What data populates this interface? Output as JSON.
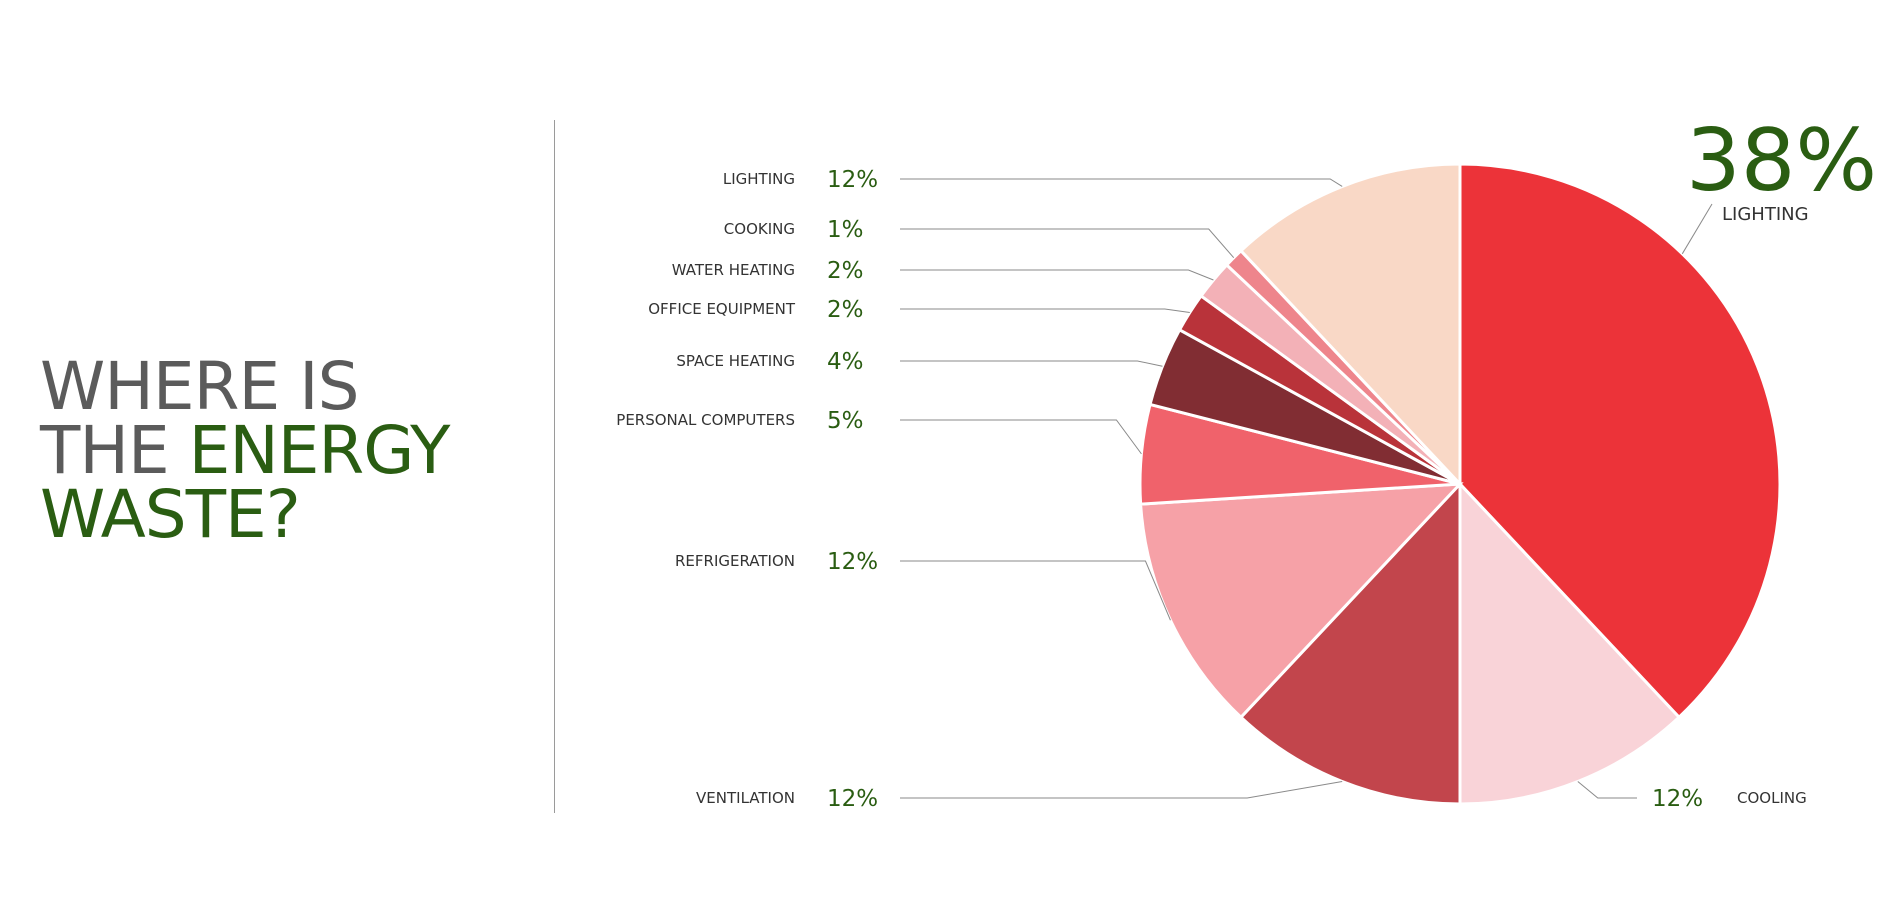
{
  "headline": {
    "line1": "WHERE IS",
    "line2a": "THE ",
    "line2b": "ENERGY",
    "line3": "WASTE?"
  },
  "chart_data": {
    "type": "pie",
    "slices": [
      {
        "label": "LIGHTING",
        "pct_text": "38%",
        "value": 38,
        "color": "#ec3339"
      },
      {
        "label": "COOLING",
        "pct_text": "12%",
        "value": 12,
        "color": "#f9d3d8"
      },
      {
        "label": "VENTILATION",
        "pct_text": "12%",
        "value": 12,
        "color": "#c2454c"
      },
      {
        "label": "REFRIGERATION",
        "pct_text": "12%",
        "value": 12,
        "color": "#f6a1a7"
      },
      {
        "label": "PERSONAL COMPUTERS",
        "pct_text": "5%",
        "value": 5,
        "color": "#f0626b"
      },
      {
        "label": "SPACE HEATING",
        "pct_text": "4%",
        "value": 4,
        "color": "#812d33"
      },
      {
        "label": "OFFICE EQUIPMENT",
        "pct_text": "2%",
        "value": 2,
        "color": "#b9333a"
      },
      {
        "label": "WATER HEATING",
        "pct_text": "2%",
        "value": 2,
        "color": "#f3b1b7"
      },
      {
        "label": "COOKING",
        "pct_text": "1%",
        "value": 1,
        "color": "#ee858c"
      },
      {
        "label": "LIGHTING",
        "pct_text": "12%",
        "value": 12,
        "color": "#f9d8c6"
      }
    ]
  }
}
